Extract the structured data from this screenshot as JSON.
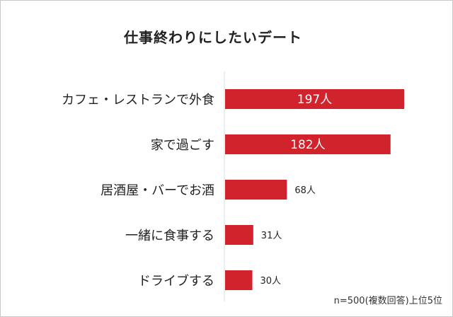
{
  "chart_data": {
    "type": "bar",
    "orientation": "horizontal",
    "title": "仕事終わりにしたいデート",
    "categories": [
      "カフェ・レストランで外食",
      "家で過ごす",
      "居酒屋・バーでお酒",
      "一緒に食事する",
      "ドライブする"
    ],
    "values": [
      197,
      182,
      68,
      31,
      30
    ],
    "data_labels": [
      "197人",
      "182人",
      "68人",
      "31人",
      "30人"
    ],
    "note": "n=500(複数回答)上位5位",
    "bar_color": "#d0232b",
    "grid": false,
    "legend": "none"
  }
}
